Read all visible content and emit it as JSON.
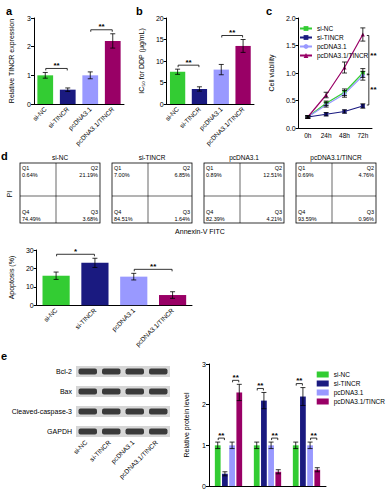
{
  "chart_data": [
    {
      "panel": "a",
      "type": "bar",
      "ylabel": "Relative TINCR expression",
      "categories": [
        "si-NC",
        "si-TINCR",
        "pcDNA3.1",
        "pcDNA3.1/TINCR"
      ],
      "values": [
        1.0,
        0.5,
        1.0,
        2.2
      ],
      "errors": [
        0.1,
        0.06,
        0.12,
        0.25
      ],
      "colors": [
        "#33cc33",
        "#1a1a80",
        "#9999ff",
        "#990066"
      ],
      "ylim": [
        0,
        3
      ],
      "yticks": [
        0,
        1,
        2,
        3
      ],
      "grid": false,
      "significance": [
        {
          "label": "**",
          "between": [
            "si-NC",
            "si-TINCR"
          ]
        },
        {
          "label": "**",
          "between": [
            "pcDNA3.1",
            "pcDNA3.1/TINCR"
          ]
        }
      ]
    },
    {
      "panel": "b",
      "type": "bar",
      "ylabel": "IC₅₀ for DDP (μg/mL)",
      "categories": [
        "si-NC",
        "si-TINCR",
        "pcDNA3.1",
        "pcDNA3.1/TINCR"
      ],
      "values": [
        7.5,
        3.5,
        8.0,
        13.5
      ],
      "errors": [
        0.6,
        0.5,
        1.2,
        1.5
      ],
      "colors": [
        "#33cc33",
        "#1a1a80",
        "#9999ff",
        "#990066"
      ],
      "ylim": [
        0,
        20
      ],
      "yticks": [
        0,
        5,
        10,
        15,
        20
      ],
      "grid": false,
      "significance": [
        {
          "label": "**",
          "between": [
            "si-NC",
            "si-TINCR"
          ]
        },
        {
          "label": "**",
          "between": [
            "pcDNA3.1",
            "pcDNA3.1/TINCR"
          ]
        }
      ]
    },
    {
      "panel": "c",
      "type": "line",
      "ylabel": "Cell viability",
      "categories": [
        "0h",
        "24h",
        "48h",
        "72h"
      ],
      "ylim": [
        0,
        2
      ],
      "yticks": [
        {
          "value": 0,
          "label": "0.0"
        },
        0.5,
        {
          "value": 1,
          "label": "1.0"
        },
        1.5,
        {
          "value": 2,
          "label": "2.0"
        }
      ],
      "grid": false,
      "legend": "upper left",
      "series": [
        {
          "name": "si-NC",
          "color": "#33cc33",
          "marker": "square",
          "values": [
            0.2,
            0.45,
            0.65,
            1.0
          ],
          "errors": [
            0.02,
            0.04,
            0.06,
            0.08
          ]
        },
        {
          "name": "si-TINCR",
          "color": "#1a1a80",
          "marker": "square",
          "values": [
            0.2,
            0.25,
            0.3,
            0.4
          ],
          "errors": [
            0.02,
            0.03,
            0.03,
            0.04
          ]
        },
        {
          "name": "pcDNA3.1",
          "color": "#9999ff",
          "marker": "circle",
          "values": [
            0.2,
            0.42,
            0.62,
            0.95
          ],
          "errors": [
            0.02,
            0.04,
            0.06,
            0.08
          ]
        },
        {
          "name": "pcDNA3.1/TINCR",
          "color": "#990066",
          "marker": "triangle",
          "values": [
            0.2,
            0.6,
            1.1,
            1.7
          ],
          "errors": [
            0.02,
            0.05,
            0.1,
            0.12
          ]
        }
      ],
      "significance": [
        {
          "label": "**",
          "x": "72h",
          "between": [
            "pcDNA3.1/TINCR",
            "pcDNA3.1"
          ]
        },
        {
          "label": "**",
          "x": "72h",
          "between": [
            "si-NC",
            "si-TINCR"
          ]
        }
      ]
    },
    {
      "panel": "d",
      "type": "flow_cytometry",
      "xlabel": "Annexin-V FITC",
      "ylabel": "PI",
      "tick_labels": false,
      "plots": [
        {
          "title": "si-NC",
          "quadrants": [
            {
              "name": "Q1",
              "label": "0.64%"
            },
            {
              "name": "Q2",
              "label": "21.19%"
            },
            {
              "name": "Q3",
              "label": "3.68%"
            },
            {
              "name": "Q4",
              "label": "74.49%"
            }
          ]
        },
        {
          "title": "si-TINCR",
          "quadrants": [
            {
              "name": "Q1",
              "label": "7.00%"
            },
            {
              "name": "Q2",
              "label": "6.85%"
            },
            {
              "name": "Q3",
              "label": "1.64%"
            },
            {
              "name": "Q4",
              "label": "84.51%"
            }
          ]
        },
        {
          "title": "pcDNA3.1",
          "quadrants": [
            {
              "name": "Q1",
              "label": "0.89%"
            },
            {
              "name": "Q2",
              "label": "12.51%"
            },
            {
              "name": "Q3",
              "label": "4.21%"
            },
            {
              "name": "Q4",
              "label": "82.39%"
            }
          ]
        },
        {
          "title": "pcDNA3.1/TINCR",
          "quadrants": [
            {
              "name": "Q1",
              "label": "0.69%"
            },
            {
              "name": "Q2",
              "label": "4.76%"
            },
            {
              "name": "Q3",
              "label": "0.96%"
            },
            {
              "name": "Q4",
              "label": "93.59%"
            }
          ]
        }
      ]
    },
    {
      "type": "bar",
      "ylabel": "Apoptosis (%)",
      "categories": [
        "si-NC",
        "si-TINCR",
        "pcDNA3.1",
        "pcDNA3.1/TINCR"
      ],
      "values": [
        16,
        23,
        15.5,
        5.5
      ],
      "errors": [
        2,
        2.5,
        1.8,
        1.8
      ],
      "colors": [
        "#33cc33",
        "#1a1a80",
        "#9999ff",
        "#990066"
      ],
      "ylim": [
        0,
        30
      ],
      "yticks": [
        0,
        10,
        20,
        30
      ],
      "grid": false,
      "significance": [
        {
          "label": "*",
          "between": [
            "si-NC",
            "si-TINCR"
          ]
        },
        {
          "label": "**",
          "between": [
            "pcDNA3.1",
            "pcDNA3.1/TINCR"
          ]
        }
      ]
    },
    {
      "panel": "e",
      "type": "western_blot",
      "rows": [
        "Bcl-2",
        "Bax",
        "Cleaved-caspase-3",
        "GAPDH"
      ],
      "lanes": [
        "si-NC",
        "si-TINCR",
        "pcDNA3.1",
        "pcDNA3.1/TINCR"
      ]
    },
    {
      "type": "bar",
      "ylabel": "Relative protein level",
      "categories": [
        null,
        null,
        null
      ],
      "tick_labels": "y",
      "legend": "upper right",
      "ylim": [
        0,
        3
      ],
      "yticks": [
        0,
        1,
        2,
        3
      ],
      "grid": false,
      "series": [
        {
          "name": "si-NC",
          "color": "#33cc33",
          "values": [
            1,
            1,
            1
          ],
          "errors": [
            0.08,
            0.08,
            0.08
          ]
        },
        {
          "name": "si-TINCR",
          "color": "#1a1a80",
          "values": [
            0.3,
            2.1,
            2.2
          ],
          "errors": [
            0.05,
            0.2,
            0.22
          ]
        },
        {
          "name": "pcDNA3.1",
          "color": "#9999ff",
          "values": [
            1,
            1,
            1
          ],
          "errors": [
            0.08,
            0.08,
            0.08
          ]
        },
        {
          "name": "pcDNA3.1/TINCR",
          "color": "#990066",
          "values": [
            2.3,
            0.35,
            0.4
          ],
          "errors": [
            0.2,
            0.05,
            0.05
          ]
        }
      ],
      "significance": [
        {
          "label": "**",
          "category": 0,
          "between": [
            "si-NC",
            "si-TINCR"
          ]
        },
        {
          "label": "**",
          "category": 0,
          "between": [
            "pcDNA3.1",
            "pcDNA3.1/TINCR"
          ]
        },
        {
          "label": "**",
          "category": 1,
          "between": [
            "si-NC",
            "si-TINCR"
          ]
        },
        {
          "label": "**",
          "category": 1,
          "between": [
            "pcDNA3.1",
            "pcDNA3.1/TINCR"
          ]
        },
        {
          "label": "**",
          "category": 2,
          "between": [
            "si-NC",
            "si-TINCR"
          ]
        },
        {
          "label": "**",
          "category": 2,
          "between": [
            "pcDNA3.1",
            "pcDNA3.1/TINCR"
          ]
        }
      ]
    }
  ]
}
